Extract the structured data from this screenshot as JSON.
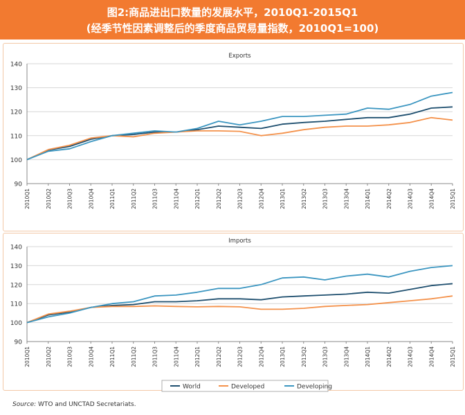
{
  "header": {
    "title_line1": "图2:商品进出口数量的发展水平，2010Q1-2015Q1",
    "title_line2": "(经季节性因素调整后的季度商品贸易量指数，2010Q1=100)",
    "accent_color": "#f27a30"
  },
  "source": {
    "label": "Source:",
    "text": " WTO and UNCTAD Secretariats."
  },
  "chart_data": [
    {
      "type": "line",
      "title": "Exports",
      "x": [
        "2010Q1",
        "2010Q2",
        "2010Q3",
        "2010Q4",
        "2011Q1",
        "2011Q2",
        "2011Q3",
        "2011Q4",
        "2012Q1",
        "2012Q2",
        "2012Q3",
        "2012Q4",
        "2013Q1",
        "2013Q2",
        "2013Q3",
        "2013Q4",
        "2014Q1",
        "2014Q2",
        "2014Q3",
        "2014Q4",
        "2015Q1"
      ],
      "ylim": [
        90,
        140
      ],
      "yticks": [
        "90",
        "100",
        "110",
        "120",
        "130",
        "140"
      ],
      "grid": true,
      "legend": "none",
      "series": [
        {
          "name": "World",
          "color": "#1d4e6e",
          "values": [
            100,
            104,
            105.5,
            108.5,
            110,
            110.5,
            111.5,
            111.5,
            112.5,
            114,
            113.5,
            113,
            114.8,
            115.5,
            116,
            116.8,
            117.5,
            117.5,
            119,
            121.5,
            122
          ]
        },
        {
          "name": "Developed",
          "color": "#f4914a",
          "values": [
            100,
            104.2,
            106,
            109,
            110,
            109.5,
            111,
            111.5,
            112,
            112,
            111.8,
            110,
            111,
            112.5,
            113.5,
            114,
            114,
            114.5,
            115.5,
            117.5,
            116.5
          ]
        },
        {
          "name": "Developing",
          "color": "#3a95c0",
          "values": [
            100,
            103.5,
            104.5,
            107.5,
            110,
            111,
            112,
            111.5,
            113,
            116,
            114.5,
            116,
            118,
            118,
            118.5,
            119,
            121.5,
            121,
            123,
            126.5,
            128
          ]
        }
      ]
    },
    {
      "type": "line",
      "title": "Imports",
      "x": [
        "2010Q1",
        "2010Q2",
        "2010Q3",
        "2010Q4",
        "2011Q1",
        "2011Q2",
        "2011Q3",
        "2011Q4",
        "2012Q1",
        "2012Q2",
        "2012Q3",
        "2012Q4",
        "2013Q1",
        "2013Q2",
        "2013Q3",
        "2013Q4",
        "2014Q1",
        "2014Q2",
        "2014Q3",
        "2014Q4",
        "2015Q1"
      ],
      "ylim": [
        90,
        140
      ],
      "yticks": [
        "90",
        "100",
        "110",
        "120",
        "130",
        "140"
      ],
      "grid": true,
      "legend": "bottom-center",
      "series": [
        {
          "name": "World",
          "color": "#1d4e6e",
          "values": [
            100,
            104,
            105.5,
            108,
            109,
            109.5,
            111,
            111,
            111.5,
            112.5,
            112.5,
            112,
            113.5,
            114,
            114.5,
            115,
            116,
            115.5,
            117.5,
            119.5,
            120.5
          ]
        },
        {
          "name": "Developed",
          "color": "#f4914a",
          "values": [
            100,
            104.5,
            106,
            108,
            108.5,
            108.5,
            108.8,
            108.5,
            108.3,
            108.5,
            108.3,
            107,
            107,
            107.5,
            108.5,
            109,
            109.5,
            110.5,
            111.5,
            112.5,
            114
          ]
        },
        {
          "name": "Developing",
          "color": "#3a95c0",
          "values": [
            100,
            103,
            105,
            108,
            110,
            111,
            114,
            114.5,
            116,
            118,
            118,
            120,
            123.5,
            124,
            122.5,
            124.5,
            125.5,
            124,
            127,
            129,
            130
          ]
        }
      ]
    }
  ]
}
